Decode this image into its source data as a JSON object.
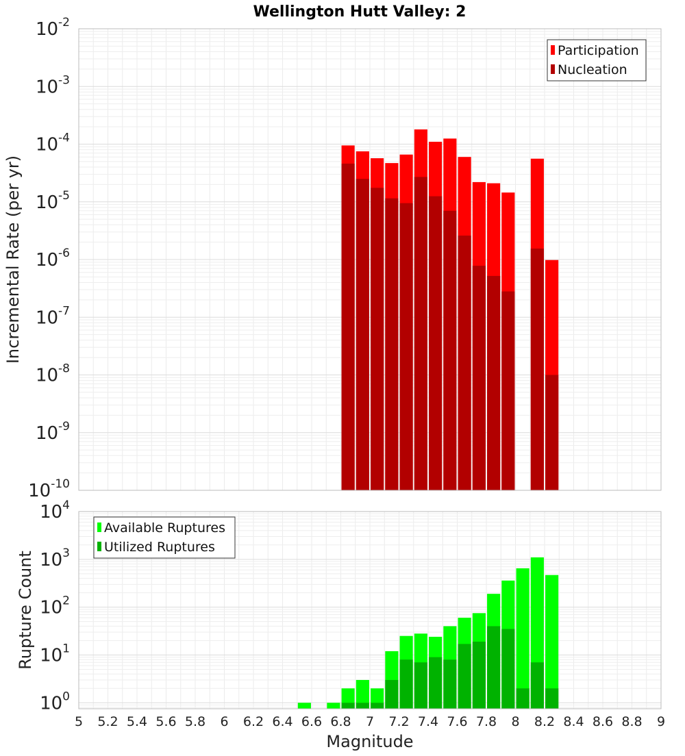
{
  "chart_data": [
    {
      "type": "bar",
      "title": "Wellington Hutt Valley: 2",
      "xlabel": "Magnitude",
      "ylabel": "Incremental Rate (per yr)",
      "log_y": true,
      "xlim": [
        5,
        9
      ],
      "ylim": [
        1e-10,
        0.01
      ],
      "y_ticks": [
        {
          "base": "10",
          "exp": "-10"
        },
        {
          "base": "10",
          "exp": "-9"
        },
        {
          "base": "10",
          "exp": "-8"
        },
        {
          "base": "10",
          "exp": "-7"
        },
        {
          "base": "10",
          "exp": "-6"
        },
        {
          "base": "10",
          "exp": "-5"
        },
        {
          "base": "10",
          "exp": "-4"
        },
        {
          "base": "10",
          "exp": "-3"
        },
        {
          "base": "10",
          "exp": "-2"
        }
      ],
      "grid": true,
      "legend_position": "top-right",
      "bar_width": 0.09,
      "x": [
        6.85,
        6.95,
        7.05,
        7.15,
        7.25,
        7.35,
        7.45,
        7.55,
        7.65,
        7.75,
        7.85,
        7.95,
        8.05,
        8.15,
        8.25
      ],
      "series": [
        {
          "name": "Participation",
          "color": "#ff0000",
          "values": [
            9.5e-05,
            7.5e-05,
            5.7e-05,
            4.7e-05,
            6.6e-05,
            0.00018,
            0.00011,
            0.000125,
            6e-05,
            2.2e-05,
            2.1e-05,
            1.45e-05,
            null,
            5.6e-05,
            9.8e-07
          ]
        },
        {
          "name": "Nucleation",
          "color": "#b20000",
          "values": [
            4.6e-05,
            2.5e-05,
            1.75e-05,
            1.15e-05,
            9.5e-06,
            2.7e-05,
            1.25e-05,
            7e-06,
            2.6e-06,
            7.8e-07,
            5.2e-07,
            2.8e-07,
            null,
            1.55e-06,
            1e-08
          ]
        }
      ]
    },
    {
      "type": "bar",
      "xlabel": "Magnitude",
      "ylabel": "Rupture Count",
      "log_y": true,
      "xlim": [
        5,
        9
      ],
      "ylim": [
        0.75,
        10000
      ],
      "x_ticks": [
        "5",
        "5.2",
        "5.4",
        "5.6",
        "5.8",
        "6",
        "6.2",
        "6.4",
        "6.6",
        "6.8",
        "7",
        "7.2",
        "7.4",
        "7.6",
        "7.8",
        "8",
        "8.2",
        "8.4",
        "8.6",
        "8.8",
        "9"
      ],
      "y_ticks": [
        {
          "base": "10",
          "exp": "0"
        },
        {
          "base": "10",
          "exp": "1"
        },
        {
          "base": "10",
          "exp": "2"
        },
        {
          "base": "10",
          "exp": "3"
        },
        {
          "base": "10",
          "exp": "4"
        }
      ],
      "grid": true,
      "legend_position": "top-left",
      "bar_width": 0.09,
      "x": [
        6.55,
        6.75,
        6.85,
        6.95,
        7.05,
        7.15,
        7.25,
        7.35,
        7.45,
        7.55,
        7.65,
        7.75,
        7.85,
        7.95,
        8.05,
        8.15,
        8.25
      ],
      "series": [
        {
          "name": "Available Ruptures",
          "color": "#00ff00",
          "values": [
            1,
            1,
            2,
            3,
            2,
            12,
            25,
            28,
            24,
            40,
            60,
            75,
            190,
            360,
            650,
            1100,
            470
          ]
        },
        {
          "name": "Utilized Ruptures",
          "color": "#00b200",
          "values": [
            null,
            null,
            1,
            1,
            1,
            3,
            8,
            7,
            9,
            8,
            17,
            19,
            40,
            35,
            2,
            7,
            2
          ]
        }
      ]
    }
  ]
}
